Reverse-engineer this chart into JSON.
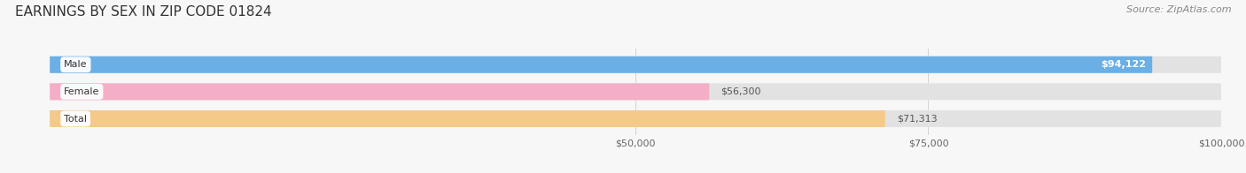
{
  "title": "EARNINGS BY SEX IN ZIP CODE 01824",
  "source": "Source: ZipAtlas.com",
  "categories": [
    "Male",
    "Female",
    "Total"
  ],
  "values": [
    94122,
    56300,
    71313
  ],
  "bar_colors": [
    "#6aafe6",
    "#f5aec8",
    "#f5c98a"
  ],
  "bar_labels": [
    "$94,122",
    "$56,300",
    "$71,313"
  ],
  "xmin": 0,
  "xmax": 100000,
  "xticks": [
    50000,
    75000,
    100000
  ],
  "xtick_labels": [
    "$50,000",
    "$75,000",
    "$100,000"
  ],
  "background_color": "#f7f7f7",
  "bar_bg_color": "#e2e2e2",
  "title_fontsize": 11,
  "source_fontsize": 8,
  "bar_height": 0.62,
  "figsize": [
    14.06,
    1.96
  ],
  "dpi": 100
}
